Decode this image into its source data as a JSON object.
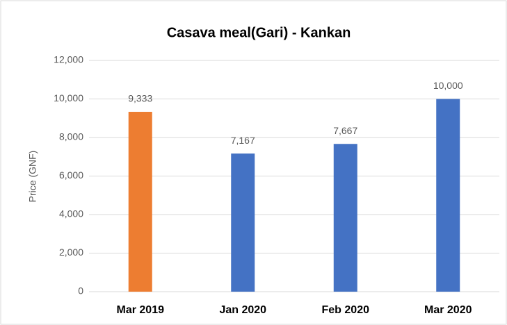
{
  "chart_data": {
    "type": "bar",
    "title": "Casava meal(Gari) - Kankan",
    "y_label": "Price (GNF)",
    "categories": [
      "Mar 2019",
      "Jan 2020",
      "Feb 2020",
      "Mar 2020"
    ],
    "values": [
      9333,
      7167,
      7667,
      10000
    ],
    "value_labels": [
      "9,333",
      "7,167",
      "7,667",
      "10,000"
    ],
    "colors": [
      "#ed7d31",
      "#4472c4",
      "#4472c4",
      "#4472c4"
    ],
    "ylim": [
      0,
      12000
    ],
    "yticks": [
      0,
      {
        "value": 2000,
        "label": "2,000"
      },
      {
        "value": 4000,
        "label": "4,000"
      },
      {
        "value": 6000,
        "label": "6,000"
      },
      {
        "value": 8000,
        "label": "8,000"
      },
      {
        "value": 10000,
        "label": "10,000"
      },
      {
        "value": 12000,
        "label": "12,000"
      }
    ],
    "grid": true
  }
}
